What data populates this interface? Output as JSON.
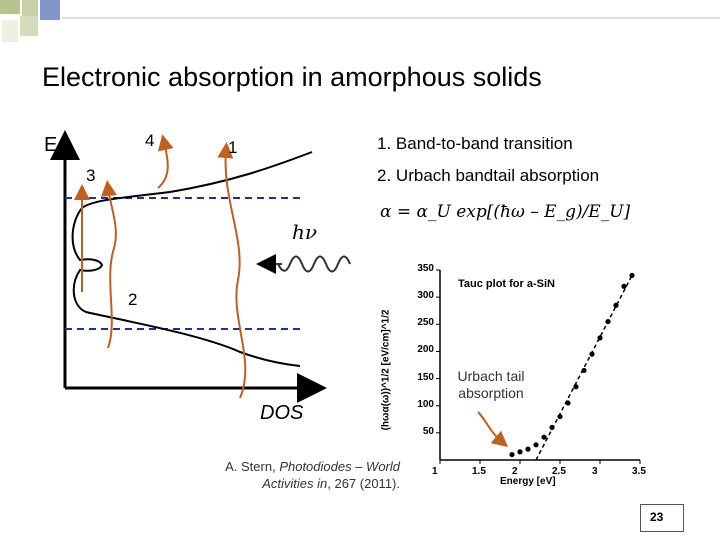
{
  "slide": {
    "title": "Electronic absorption in amorphous solids",
    "page_number": "23"
  },
  "bullets": [
    {
      "num": "1.",
      "text": "Band-to-band transition"
    },
    {
      "num": "2.",
      "text": "Urbach bandtail absorption"
    }
  ],
  "dos_diagram": {
    "energy_axis_label": "E",
    "dos_axis_label": "DOS",
    "photon_label": "hν",
    "transition_labels": [
      "1",
      "2",
      "3",
      "4"
    ]
  },
  "formula": "α = α_U exp[(ħω – E_g)/E_U]",
  "chart_data": {
    "type": "scatter",
    "title": "Tauc plot for a-SiN",
    "xlabel": "Energy [eV]",
    "ylabel": "(hωα(ω))^1/2 [eV/cm]^1/2",
    "xlim": [
      1,
      3.5
    ],
    "ylim": [
      0,
      350
    ],
    "x_ticks": [
      "1",
      "1.5",
      "2",
      "2.5",
      "3",
      "3.5"
    ],
    "y_ticks": [
      "50",
      "100",
      "150",
      "200",
      "250",
      "300",
      "350"
    ],
    "points": [
      [
        1.9,
        10
      ],
      [
        2.0,
        15
      ],
      [
        2.1,
        20
      ],
      [
        2.2,
        28
      ],
      [
        2.3,
        42
      ],
      [
        2.4,
        60
      ],
      [
        2.5,
        80
      ],
      [
        2.6,
        105
      ],
      [
        2.7,
        135
      ],
      [
        2.8,
        165
      ],
      [
        2.9,
        195
      ],
      [
        3.0,
        225
      ],
      [
        3.1,
        255
      ],
      [
        3.2,
        285
      ],
      [
        3.3,
        320
      ],
      [
        3.4,
        340
      ]
    ],
    "fit_line": [
      [
        2.2,
        0
      ],
      [
        3.4,
        340
      ]
    ],
    "annotation": "Urbach tail absorption"
  },
  "citation": {
    "prefix": "A. Stern, ",
    "title": "Photodiodes – World Activities in",
    "suffix": ", 267 (2011)."
  },
  "colors": {
    "accent_blue": "#1f3a8a",
    "arrow_orange": "#c06020",
    "dashed_line": "#1f2f9f",
    "deco_green": "#b6c48e",
    "deco_blue": "#8296c8"
  }
}
